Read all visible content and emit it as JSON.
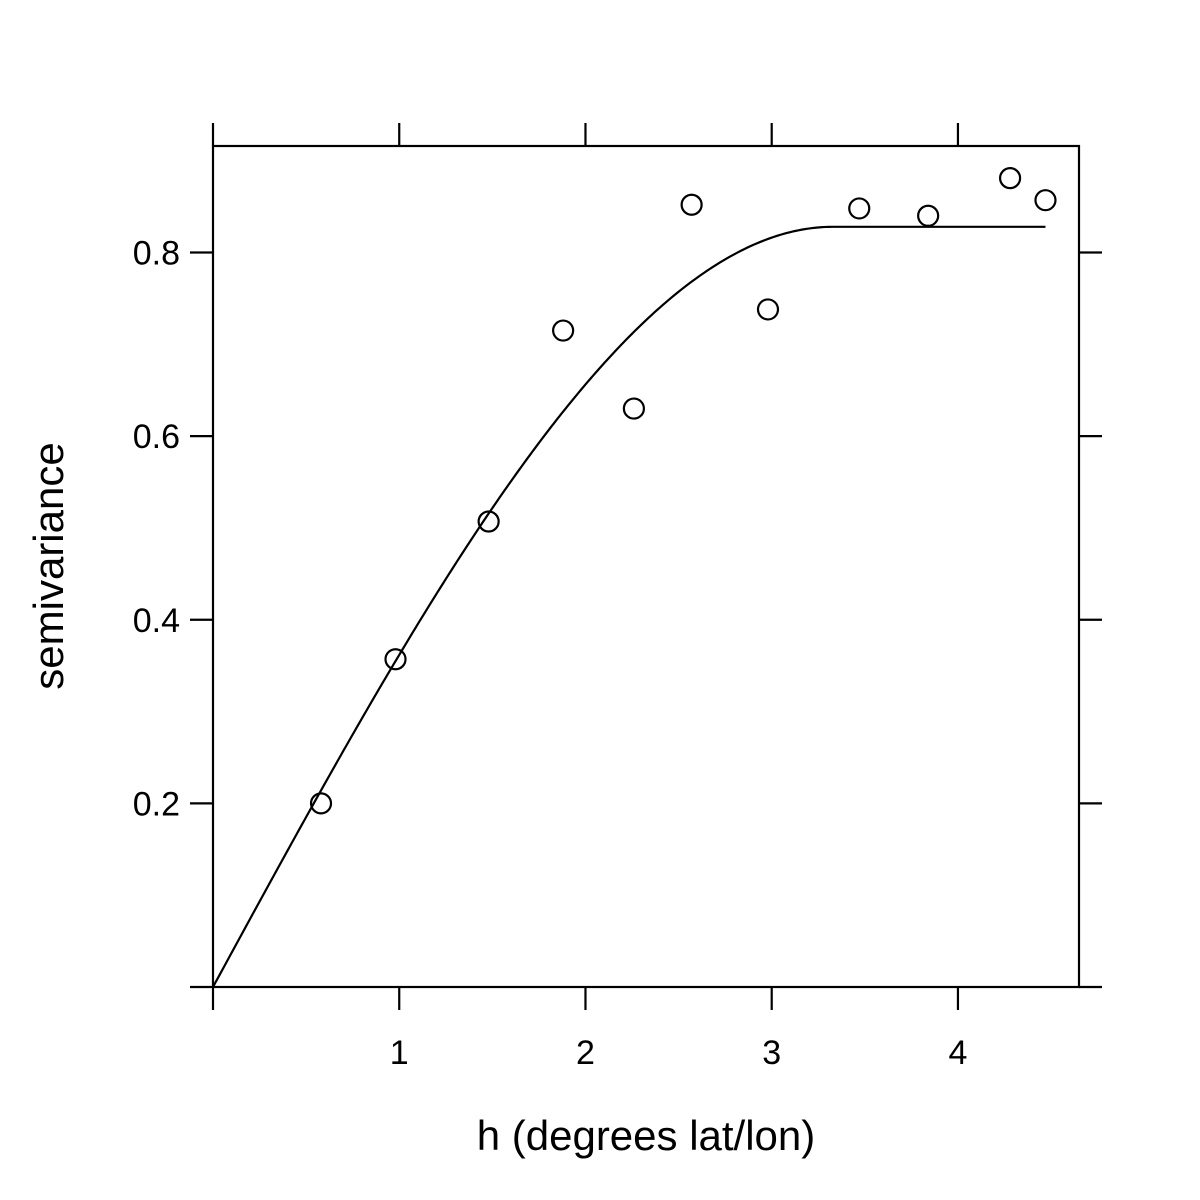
{
  "chart_data": {
    "type": "scatter",
    "title": "",
    "xlabel": "h (degrees lat/lon)",
    "ylabel": "semivariance",
    "xlim": [
      0,
      4.65
    ],
    "ylim": [
      0,
      0.916
    ],
    "x_ticks": [
      1,
      2,
      3,
      4
    ],
    "x_tick_labels": [
      "1",
      "2",
      "3",
      "4"
    ],
    "y_ticks": [
      0.2,
      0.4,
      0.6,
      0.8
    ],
    "y_tick_labels": [
      "0.2",
      "0.4",
      "0.6",
      "0.8"
    ],
    "grid": false,
    "series": [
      {
        "kind": "points",
        "marker": "open-circle",
        "points": [
          {
            "x": 0.58,
            "y": 0.2
          },
          {
            "x": 0.98,
            "y": 0.357
          },
          {
            "x": 1.48,
            "y": 0.507
          },
          {
            "x": 1.88,
            "y": 0.715
          },
          {
            "x": 2.26,
            "y": 0.63
          },
          {
            "x": 2.57,
            "y": 0.852
          },
          {
            "x": 2.98,
            "y": 0.738
          },
          {
            "x": 3.47,
            "y": 0.848
          },
          {
            "x": 3.84,
            "y": 0.84
          },
          {
            "x": 4.28,
            "y": 0.881
          },
          {
            "x": 4.47,
            "y": 0.857
          }
        ]
      },
      {
        "kind": "fitted-curve",
        "model": "spherical",
        "sill": 0.828,
        "range": 3.33,
        "x_max": 4.47
      }
    ],
    "colors": {
      "ink": "#000000",
      "background": "#ffffff"
    }
  }
}
